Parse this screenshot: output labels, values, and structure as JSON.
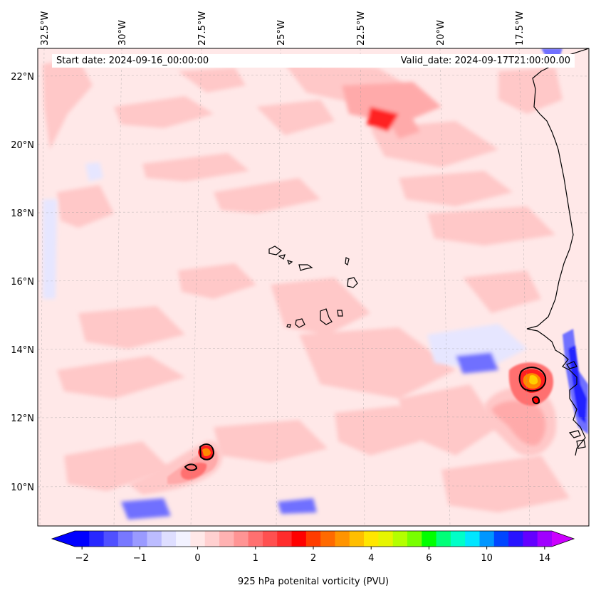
{
  "figure": {
    "start_date": "Start date: 2024-09-16_00:00:00",
    "valid_date": "Valid_date: 2024-09-17T21:00:00.00"
  },
  "axes": {
    "lon_labels": [
      "32.5°W",
      "30°W",
      "27.5°W",
      "25°W",
      "22.5°W",
      "20°W",
      "17.5°W"
    ],
    "lat_labels": [
      "22°N",
      "20°N",
      "18°N",
      "16°N",
      "14°N",
      "12°N",
      "10°N"
    ]
  },
  "colorbar": {
    "label": "925 hPa potenital vorticity (PVU)",
    "tick_labels": [
      "−2",
      "−1",
      "0",
      "1",
      "2",
      "4",
      "6",
      "10",
      "14"
    ],
    "colors": [
      "#0000ff",
      "#2828ff",
      "#5050ff",
      "#7878ff",
      "#9a9aff",
      "#bcbcff",
      "#dedeff",
      "#f2f2ff",
      "#ffe8e8",
      "#ffd0d0",
      "#ffb2b2",
      "#ff9494",
      "#ff7070",
      "#ff5050",
      "#ff2c2c",
      "#ff0000",
      "#ff3c00",
      "#ff6a00",
      "#ff9400",
      "#ffbe00",
      "#ffe600",
      "#e6f500",
      "#b4ff00",
      "#78ff00",
      "#00ff00",
      "#00ff78",
      "#00ffc8",
      "#00e6ff",
      "#0096ff",
      "#0046ff",
      "#2814ff",
      "#6400ff",
      "#a000ff"
    ],
    "under_color": "#0000ff",
    "over_color": "#cc00ff"
  },
  "map_colors": {
    "background": "#ffe8e8",
    "light_pink": "#ffc8c8",
    "mid_pink": "#ffaaaa",
    "red": "#ff7070",
    "strong_red": "#ff2020",
    "orange": "#ff8a00",
    "yellow": "#ffd000",
    "light_blue": "#e6e6ff",
    "blue": "#7070ff",
    "deep_blue": "#2020ff"
  }
}
